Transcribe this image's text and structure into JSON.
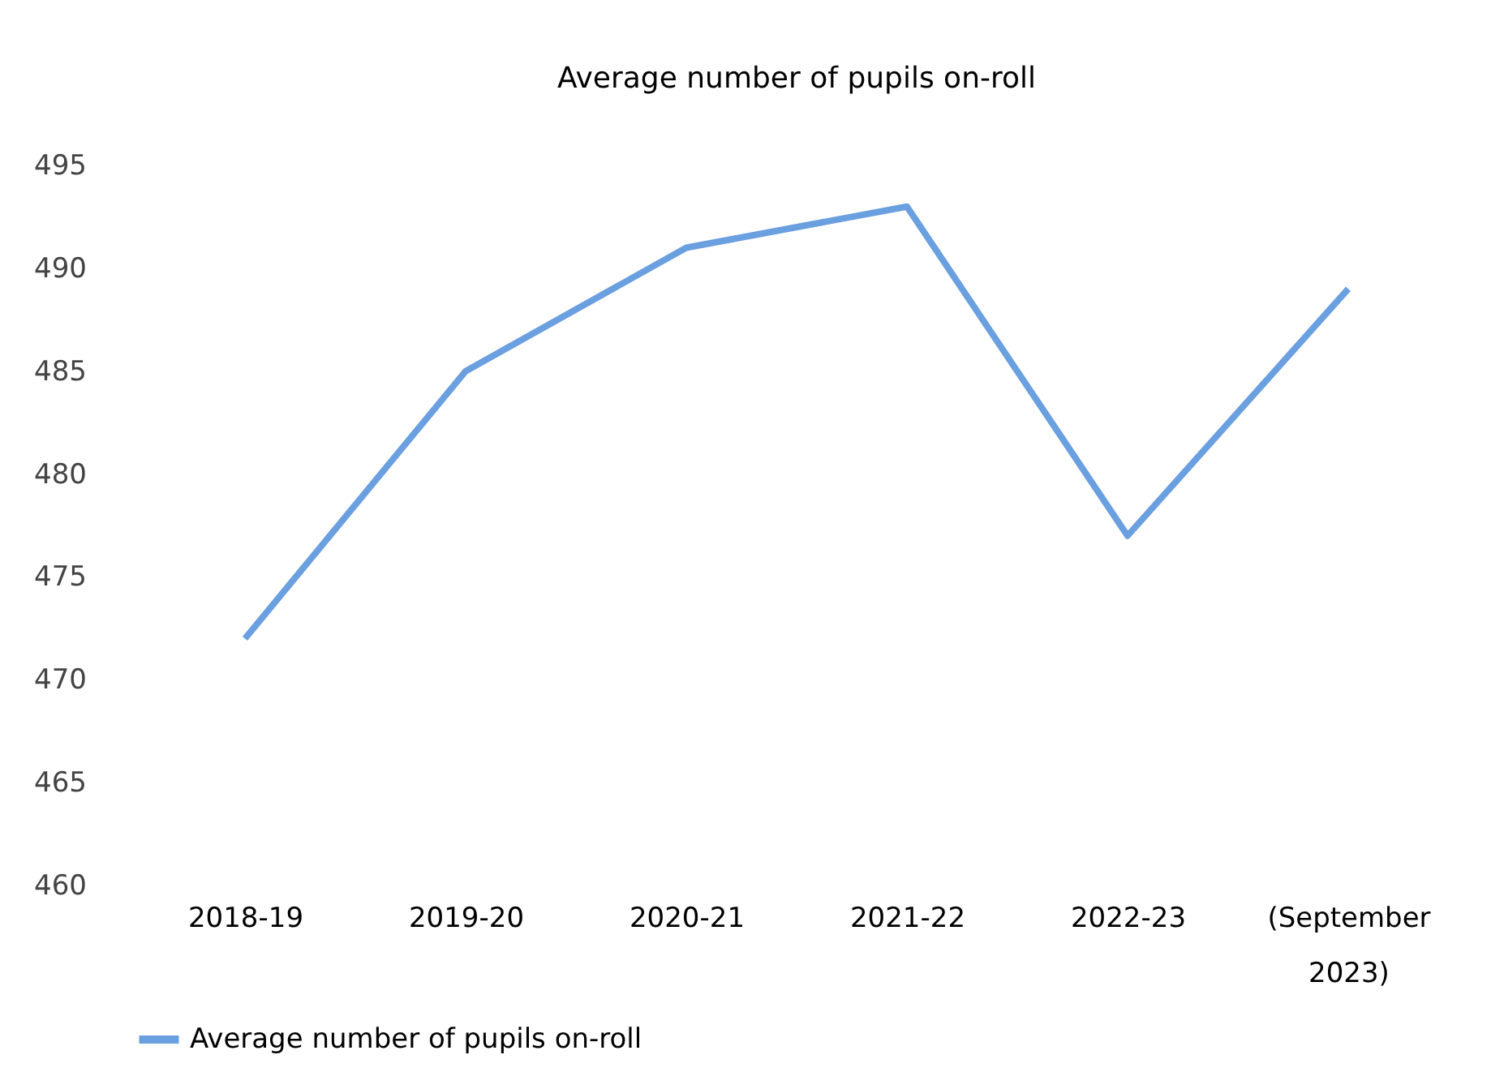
{
  "chart_data": {
    "type": "line",
    "title": "Average number of pupils on-roll",
    "categories": [
      "2018-19",
      "2019-20",
      "2020-21",
      "2021-22",
      "2022-23",
      "(September 2023)"
    ],
    "series": [
      {
        "name": "Average number of pupils on-roll",
        "color": "#6a9fe0",
        "values": [
          472,
          485,
          491,
          493,
          477,
          489
        ]
      }
    ],
    "ylim": [
      460,
      495
    ],
    "yticks": [
      460,
      465,
      470,
      475,
      480,
      485,
      490,
      495
    ],
    "grid": false,
    "legend": "bottom",
    "marker": "none",
    "line_style": "solid"
  }
}
